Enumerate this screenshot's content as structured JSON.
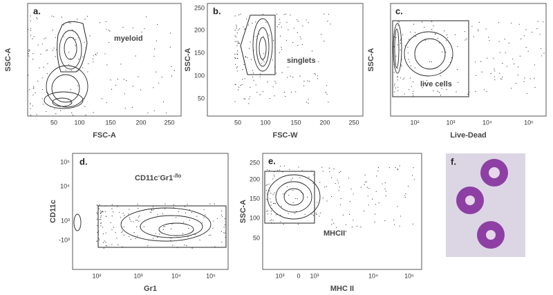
{
  "panels": [
    {
      "letter": "a.",
      "x_label": "FSC-A",
      "y_label": "SSC-A",
      "gate_label": [
        "myeloid"
      ],
      "xticks": [
        "50",
        "100",
        "150",
        "200",
        "250"
      ],
      "yticks": []
    },
    {
      "letter": "b.",
      "x_label": "FSC-W",
      "y_label": "SSC-A",
      "gate_label": [
        "singlets"
      ],
      "xticks": [
        "50",
        "100",
        "150",
        "200",
        "250"
      ],
      "yticks": [
        "250",
        "200",
        "150",
        "100",
        "50"
      ]
    },
    {
      "letter": "c.",
      "x_label": "Live-Dead",
      "y_label": "SSC-A",
      "gate_label": [
        "live cells"
      ],
      "xticks": [
        "10²",
        "10³",
        "10⁴",
        "10⁵"
      ],
      "yticks": []
    },
    {
      "letter": "d.",
      "x_label": "Gr1",
      "y_label": "CD11c",
      "gate_label": [
        "CD11c",
        "-",
        "Gr1",
        "-/lo"
      ],
      "xticks": [
        "10²",
        "10³",
        "10⁴",
        "10⁵"
      ],
      "yticks": [
        "10⁵",
        "10⁴",
        "10³",
        "-10³"
      ]
    },
    {
      "letter": "e.",
      "x_label": "MHC II",
      "y_label": "SSC-A",
      "gate_label": [
        "MHCII",
        "-"
      ],
      "xticks": [
        "10³",
        "0",
        "10³",
        "10⁴",
        "10⁵"
      ],
      "yticks": [
        "250",
        "200",
        "150",
        "100",
        "50"
      ]
    },
    {
      "letter": "f."
    }
  ]
}
